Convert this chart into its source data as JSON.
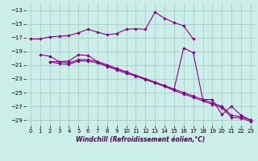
{
  "xlabel": "Windchill (Refroidissement éolien,°C)",
  "bg_color": "#cceee8",
  "grid_color": "#aacccc",
  "line_color": "#880088",
  "xlim": [
    -0.5,
    23.5
  ],
  "ylim": [
    -29.8,
    -12.0
  ],
  "yticks": [
    -13,
    -15,
    -17,
    -19,
    -21,
    -23,
    -25,
    -27,
    -29
  ],
  "xticks": [
    0,
    1,
    2,
    3,
    4,
    5,
    6,
    7,
    8,
    9,
    10,
    11,
    12,
    13,
    14,
    15,
    16,
    17,
    18,
    19,
    20,
    21,
    22,
    23
  ],
  "line1_x": [
    0,
    1,
    2,
    3,
    4,
    5,
    6,
    7,
    8,
    9,
    10,
    11,
    12,
    13,
    14,
    15,
    16,
    17
  ],
  "line1_y": [
    -17.2,
    -17.2,
    -16.9,
    -16.8,
    -16.7,
    -16.3,
    -15.8,
    -16.2,
    -16.6,
    -16.4,
    -15.8,
    -15.7,
    -15.8,
    -13.3,
    -14.2,
    -14.8,
    -15.3,
    -17.2
  ],
  "line2_x": [
    1,
    2,
    3,
    4,
    5,
    6,
    7,
    8,
    9,
    10,
    11,
    12,
    13,
    14,
    15,
    16,
    17,
    18,
    19,
    20,
    21,
    22,
    23
  ],
  "line2_y": [
    -19.5,
    -19.7,
    -20.5,
    -20.4,
    -19.5,
    -19.6,
    -20.5,
    -21.0,
    -21.5,
    -22.0,
    -22.5,
    -23.0,
    -23.5,
    -24.0,
    -24.5,
    -18.5,
    -19.2,
    -26.0,
    -26.0,
    -28.2,
    -27.0,
    -28.3,
    -29.0
  ],
  "line3_x": [
    2,
    3,
    4,
    5,
    6,
    7,
    8,
    9,
    10,
    11,
    12,
    13,
    14,
    15,
    16,
    17,
    18,
    19,
    20,
    21,
    22,
    23
  ],
  "line3_y": [
    -20.5,
    -20.5,
    -20.7,
    -20.2,
    -20.2,
    -20.5,
    -21.0,
    -21.5,
    -22.0,
    -22.5,
    -23.0,
    -23.5,
    -24.0,
    -24.5,
    -25.0,
    -25.5,
    -26.0,
    -26.5,
    -27.0,
    -28.3,
    -28.5,
    -29.0
  ],
  "line4_x": [
    2,
    3,
    4,
    5,
    6,
    7,
    8,
    9,
    10,
    11,
    12,
    13,
    14,
    15,
    16,
    17,
    18,
    19,
    20,
    21,
    22,
    23
  ],
  "line4_y": [
    -20.5,
    -20.8,
    -20.9,
    -20.4,
    -20.4,
    -20.7,
    -21.2,
    -21.7,
    -22.2,
    -22.6,
    -23.1,
    -23.6,
    -24.1,
    -24.7,
    -25.2,
    -25.7,
    -26.2,
    -26.7,
    -27.2,
    -28.6,
    -28.7,
    -29.2
  ]
}
